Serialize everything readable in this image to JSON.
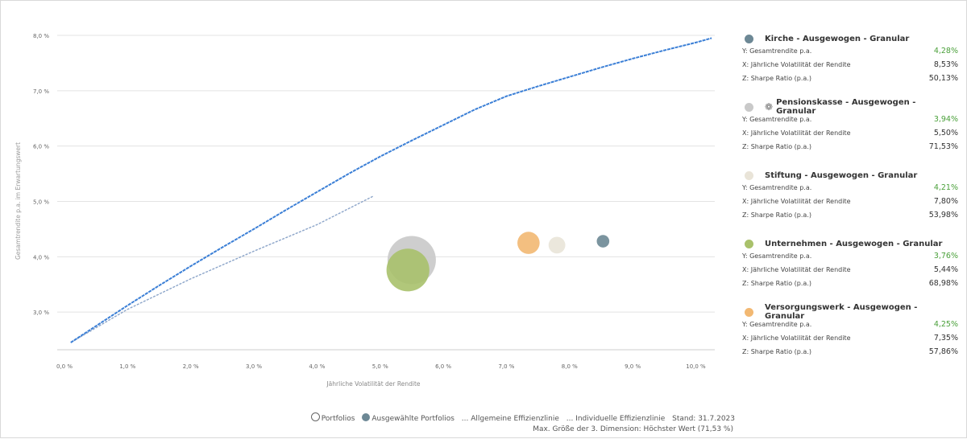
{
  "chart_data": {
    "type": "scatter",
    "x_label": "Jährliche Volatilität der Rendite",
    "y_label": "Gesamtrendite p.a. im Erwartungswert",
    "x_range": [
      0,
      10.3
    ],
    "y_range": [
      2.45,
      8.0
    ],
    "x_ticks": [
      "0,0 %",
      "1,0 %",
      "2,0 %",
      "3,0 %",
      "4,0 %",
      "5,0 %",
      "6,0 %",
      "7,0 %",
      "8,0 %",
      "9,0 %",
      "10,0 %"
    ],
    "x_tick_values": [
      0,
      1,
      2,
      3,
      4,
      5,
      6,
      7,
      8,
      9,
      10
    ],
    "y_ticks": [
      "3,0 %",
      "4,0 %",
      "5,0 %",
      "6,0 %",
      "7,0 %",
      "8,0 %"
    ],
    "y_tick_values": [
      3,
      4,
      5,
      6,
      7,
      8
    ],
    "grid": "horizontal",
    "general_frontier": [
      [
        0.1,
        2.45
      ],
      [
        0.5,
        2.75
      ],
      [
        1.0,
        3.12
      ],
      [
        1.5,
        3.48
      ],
      [
        2.0,
        3.83
      ],
      [
        2.5,
        4.17
      ],
      [
        3.0,
        4.5
      ],
      [
        3.5,
        4.84
      ],
      [
        4.0,
        5.17
      ],
      [
        4.5,
        5.5
      ],
      [
        5.0,
        5.81
      ],
      [
        5.5,
        6.1
      ],
      [
        6.0,
        6.38
      ],
      [
        6.5,
        6.66
      ],
      [
        7.0,
        6.9
      ],
      [
        7.5,
        7.08
      ],
      [
        8.0,
        7.25
      ],
      [
        8.5,
        7.42
      ],
      [
        9.0,
        7.58
      ],
      [
        9.5,
        7.73
      ],
      [
        10.0,
        7.87
      ],
      [
        10.25,
        7.95
      ]
    ],
    "individual_frontier": [
      [
        0.1,
        2.45
      ],
      [
        1.0,
        3.05
      ],
      [
        2.0,
        3.6
      ],
      [
        3.0,
        4.1
      ],
      [
        4.0,
        4.58
      ],
      [
        4.9,
        5.1
      ]
    ],
    "portfolios": [
      {
        "name": "Kirche - Ausgewogen - Granular",
        "x": 8.53,
        "y": 4.28,
        "z": 50.13,
        "color": "#6d8895",
        "display_y": "4,28%",
        "display_x": "8,53%",
        "display_z": "50,13%",
        "award": false
      },
      {
        "name": "Pensionskasse - Ausgewogen - Granular",
        "x": 5.5,
        "y": 3.94,
        "z": 71.53,
        "color": "#c9c9c9",
        "display_y": "3,94%",
        "display_x": "5,50%",
        "display_z": "71,53%",
        "award": true
      },
      {
        "name": "Stiftung - Ausgewogen - Granular",
        "x": 7.8,
        "y": 4.21,
        "z": 53.98,
        "color": "#e9e4d8",
        "display_y": "4,21%",
        "display_x": "7,80%",
        "display_z": "53,98%",
        "award": false
      },
      {
        "name": "Unternehmen - Ausgewogen - Granular",
        "x": 5.44,
        "y": 3.76,
        "z": 68.98,
        "color": "#a9c16b",
        "display_y": "3,76%",
        "display_x": "5,44%",
        "display_z": "68,98%",
        "award": false
      },
      {
        "name": "Versorgungswerk - Ausgewogen - Granular",
        "x": 7.35,
        "y": 4.25,
        "z": 57.86,
        "color": "#f2b872",
        "display_y": "4,25%",
        "display_x": "7,35%",
        "display_z": "57,86%",
        "award": false
      }
    ],
    "labels": {
      "y": "Y: Gesamtrendite p.a.",
      "x": "X: Jährliche Volatilität der Rendite",
      "z": "Z: Sharpe Ratio (p.a.)"
    },
    "colors": {
      "frontier": "#3b7fd6",
      "individual": "#8ca5c9",
      "grid": "#e3e3e3",
      "axis": "#cccccc"
    }
  },
  "legend_bottom": {
    "portfolios": "Portfolios",
    "selected": "Ausgewählte Portfolios",
    "general": "... Allgemeine Effizienzlinie",
    "individual": "... Individuelle Effizienzlinie",
    "date": "Stand: 31.7.2023",
    "note": "Max. Größe der 3. Dimension: Höchster Wert (71,53 %)"
  }
}
